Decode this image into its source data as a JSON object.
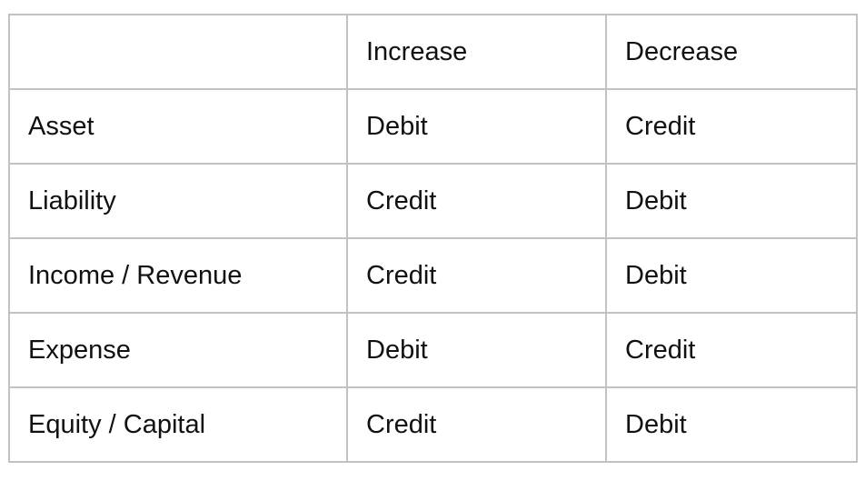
{
  "table": {
    "headers": [
      "",
      "Increase",
      "Decrease"
    ],
    "rows": [
      [
        "Asset",
        "Debit",
        "Credit"
      ],
      [
        "Liability",
        "Credit",
        "Debit"
      ],
      [
        "Income / Revenue",
        "Credit",
        "Debit"
      ],
      [
        "Expense",
        "Debit",
        "Credit"
      ],
      [
        "Equity / Capital",
        "Credit",
        "Debit"
      ]
    ]
  }
}
